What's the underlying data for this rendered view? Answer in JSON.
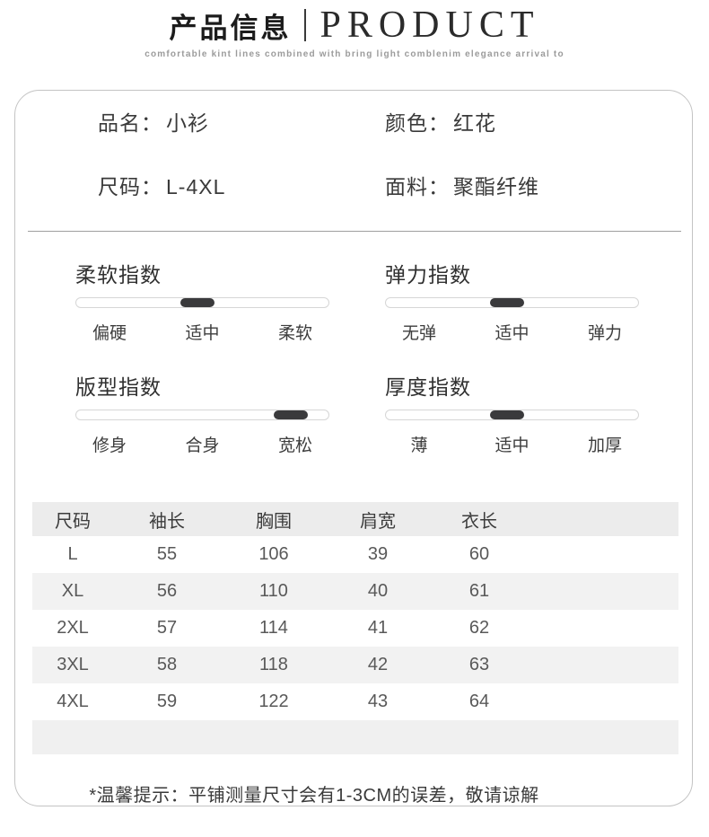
{
  "header": {
    "title_cn": "产品信息",
    "title_en": "PRODUCT",
    "subtitle": "comfortable kint lines combined with bring light comblenim elegance arrival to"
  },
  "info": {
    "fields": [
      {
        "label": "品名：",
        "value": "小衫"
      },
      {
        "label": "颜色：",
        "value": "红花"
      },
      {
        "label": "尺码：",
        "value": "L-4XL"
      },
      {
        "label": "面料：",
        "value": "聚酯纤维"
      }
    ]
  },
  "indices": [
    {
      "title": "柔软指数",
      "labels": [
        "偏硬",
        "适中",
        "柔软"
      ],
      "level": "适中",
      "level_pct": 48
    },
    {
      "title": "弹力指数",
      "labels": [
        "无弹",
        "适中",
        "弹力"
      ],
      "level": "适中",
      "level_pct": 48
    },
    {
      "title": "版型指数",
      "labels": [
        "修身",
        "合身",
        "宽松"
      ],
      "level": "宽松",
      "level_pct": 85
    },
    {
      "title": "厚度指数",
      "labels": [
        "薄",
        "适中",
        "加厚"
      ],
      "level": "适中",
      "level_pct": 48
    }
  ],
  "size_table": {
    "headers": [
      "尺码",
      "袖长",
      "胸围",
      "肩宽",
      "衣长"
    ],
    "rows": [
      [
        "L",
        "55",
        "106",
        "39",
        "60"
      ],
      [
        "XL",
        "56",
        "110",
        "40",
        "61"
      ],
      [
        "2XL",
        "57",
        "114",
        "41",
        "62"
      ],
      [
        "3XL",
        "58",
        "118",
        "42",
        "63"
      ],
      [
        "4XL",
        "59",
        "122",
        "43",
        "64"
      ]
    ]
  },
  "footer": {
    "note": "*温馨提示：平铺测量尺寸会有1-3CM的误差，敬请谅解"
  },
  "colors": {
    "slider_fill": "#3a3a3c",
    "card_border": "#c4c4c4",
    "table_header_bg": "#ececec",
    "table_alt_row_bg": "#f2f2f2"
  }
}
